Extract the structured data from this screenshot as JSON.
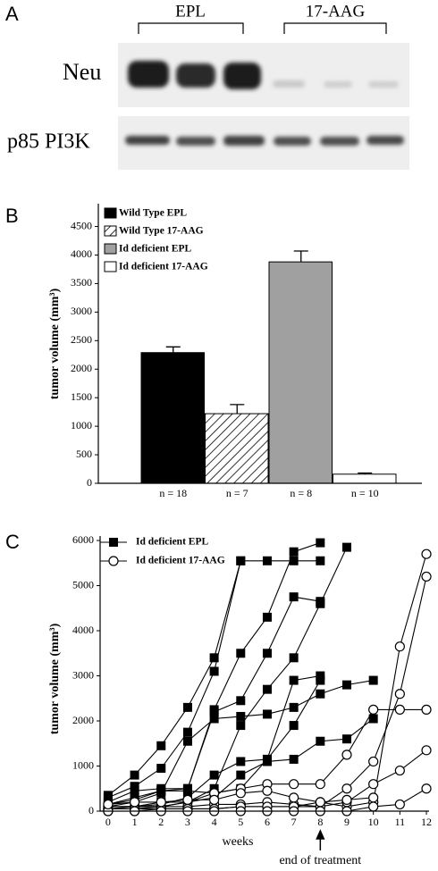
{
  "panel_a": {
    "label": "A",
    "groups": [
      "EPL",
      "17-AAG"
    ],
    "rows": [
      "Neu",
      "p85 PI3K"
    ]
  },
  "chart_data": [
    {
      "type": "bar",
      "panel_label": "B",
      "y_label": "tumor volume (mm³)",
      "categories": [
        "n = 18",
        "n = 7",
        "n = 8",
        "n = 10"
      ],
      "series": [
        {
          "name": "Wild Type EPL",
          "color": "#000000",
          "hatch": false,
          "values": [
            2290,
            null,
            null,
            null
          ],
          "errors": [
            100,
            null,
            null,
            null
          ]
        },
        {
          "name": "Wild Type 17-AAG",
          "color": "#ffffff",
          "hatch": true,
          "values": [
            null,
            1220,
            null,
            null
          ],
          "errors": [
            null,
            160,
            null,
            null
          ]
        },
        {
          "name": "Id deficient EPL",
          "color": "#a0a0a0",
          "hatch": false,
          "values": [
            null,
            null,
            3880,
            null
          ],
          "errors": [
            null,
            null,
            190,
            null
          ]
        },
        {
          "name": "Id deficient 17-AAG",
          "color": "#ffffff",
          "hatch": false,
          "values": [
            null,
            null,
            null,
            160
          ],
          "errors": [
            null,
            null,
            null,
            20
          ]
        }
      ],
      "ylim": [
        0,
        4900
      ],
      "yticks": [
        0,
        500,
        1000,
        1500,
        2000,
        2500,
        3000,
        3500,
        4000,
        4500
      ]
    },
    {
      "type": "line",
      "panel_label": "C",
      "y_label": "tumor volume (mm³)",
      "x_label": "weeks",
      "annotation": {
        "text": "end of treatment",
        "x": 8
      },
      "x": [
        0,
        1,
        2,
        3,
        4,
        5,
        6,
        7,
        8,
        9,
        10,
        11,
        12
      ],
      "xlim": [
        -0.3,
        12.1
      ],
      "xticks": [
        0,
        1,
        2,
        3,
        4,
        5,
        6,
        7,
        8,
        9,
        10,
        11,
        12
      ],
      "ylim": [
        0,
        6100
      ],
      "yticks": [
        0,
        1000,
        2000,
        3000,
        4000,
        5000,
        6000
      ],
      "series": [
        {
          "name": "Id deficient EPL",
          "marker": "square",
          "color": "#000000",
          "values": [
            [
              300,
              550,
              950,
              1750,
              3100,
              5550,
              5550,
              5550,
              5550,
              null,
              null,
              null,
              null
            ],
            [
              350,
              800,
              1450,
              2300,
              3400,
              5550,
              null,
              null,
              null,
              null,
              null,
              null,
              null
            ],
            [
              150,
              250,
              450,
              500,
              2200,
              2450,
              3500,
              4750,
              4650,
              null,
              null,
              null,
              null
            ],
            [
              200,
              450,
              500,
              500,
              2250,
              3500,
              4300,
              5750,
              5950,
              null,
              null,
              null,
              null
            ],
            [
              100,
              200,
              400,
              1550,
              2050,
              2100,
              2150,
              2300,
              2600,
              2800,
              2900,
              null,
              null
            ],
            [
              150,
              300,
              450,
              450,
              400,
              500,
              1150,
              2900,
              3000,
              null,
              null,
              null,
              null
            ],
            [
              100,
              100,
              100,
              200,
              300,
              800,
              1100,
              1150,
              1550,
              1600,
              2050,
              null,
              null
            ],
            [
              100,
              100,
              200,
              200,
              500,
              1900,
              2700,
              3400,
              4600,
              5850,
              null,
              null,
              null
            ],
            [
              50,
              100,
              150,
              300,
              800,
              1100,
              1150,
              1900,
              2900,
              null,
              null,
              null,
              null
            ]
          ]
        },
        {
          "name": "Id deficient 17-AAG",
          "marker": "circle",
          "color": "#000000",
          "values": [
            [
              50,
              50,
              50,
              50,
              50,
              100,
              100,
              100,
              200,
              100,
              200,
              3650,
              5700
            ],
            [
              100,
              100,
              100,
              200,
              400,
              500,
              600,
              600,
              600,
              1250,
              2250,
              2250,
              2250
            ],
            [
              50,
              50,
              100,
              100,
              150,
              150,
              200,
              150,
              100,
              500,
              1100,
              2600,
              5200
            ],
            [
              0,
              0,
              50,
              50,
              50,
              100,
              100,
              100,
              100,
              200,
              600,
              900,
              1350
            ],
            [
              0,
              0,
              0,
              0,
              0,
              0,
              0,
              0,
              0,
              0,
              100,
              150,
              500
            ],
            [
              150,
              200,
              200,
              250,
              250,
              400,
              450,
              300,
              200,
              250,
              300,
              null,
              null
            ]
          ]
        }
      ]
    }
  ]
}
